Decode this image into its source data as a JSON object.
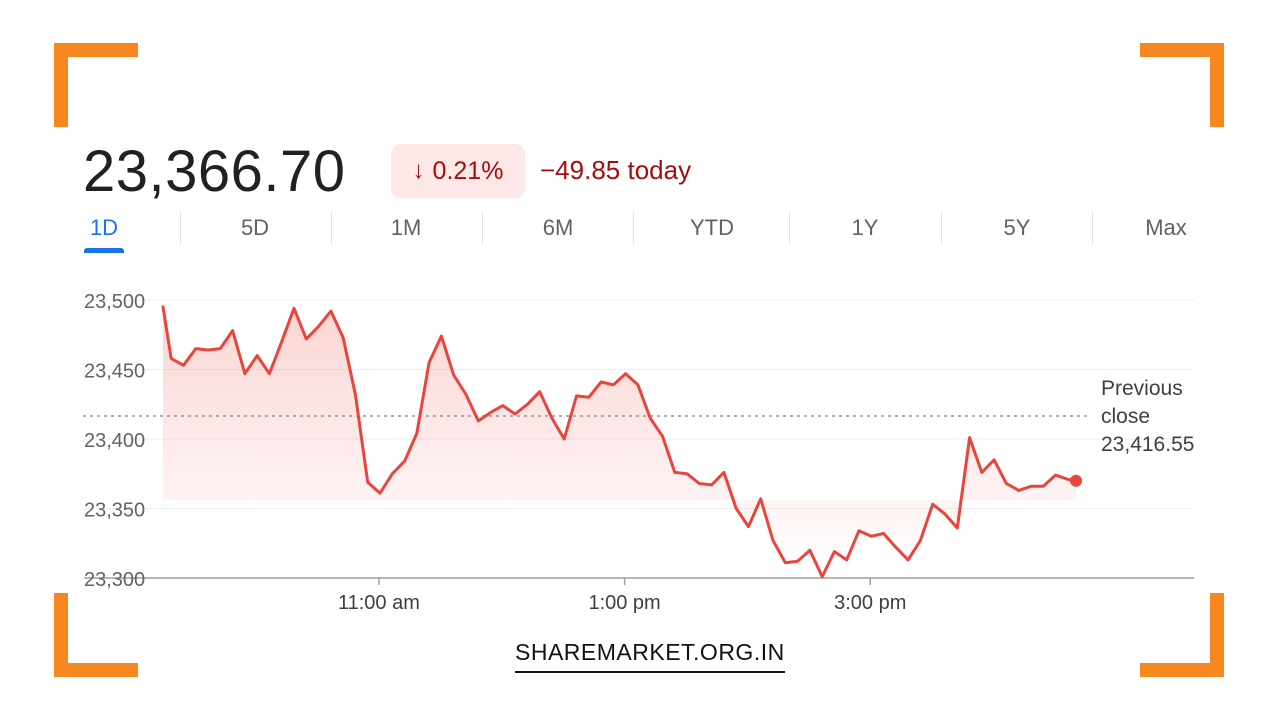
{
  "header": {
    "price": "23,366.70",
    "change_arrow": "↓",
    "change_percent": "0.21%",
    "change_abs": "−49.85 today"
  },
  "tabs": [
    {
      "label": "1D",
      "active": true
    },
    {
      "label": "5D"
    },
    {
      "label": "1M"
    },
    {
      "label": "6M"
    },
    {
      "label": "YTD"
    },
    {
      "label": "1Y"
    },
    {
      "label": "5Y"
    },
    {
      "label": "Max"
    }
  ],
  "colors": {
    "accent_corner": "#F7871F",
    "line": "#E8453C",
    "negative_text": "#A50E0E",
    "badge_bg": "#FCE8E6",
    "tab_active": "#1a73e8"
  },
  "chart_data": {
    "type": "line",
    "title": "",
    "xlabel": "",
    "ylabel": "",
    "ylim": [
      23300,
      23500
    ],
    "yticks": [
      "23,500",
      "23,450",
      "23,400",
      "23,350",
      "23,300"
    ],
    "ytick_values": [
      23500,
      23450,
      23400,
      23350,
      23300
    ],
    "xticks": [
      {
        "label": "11:00 am",
        "t": 660
      },
      {
        "label": "1:00 pm",
        "t": 780
      },
      {
        "label": "3:00 pm",
        "t": 900
      }
    ],
    "xlim": [
      555,
      1080
    ],
    "previous_close": {
      "value": 23416.55,
      "label_lines": [
        "Previous",
        "close",
        "23,416.55"
      ]
    },
    "series": [
      {
        "x": [
          555,
          559,
          565,
          571,
          577,
          583,
          589,
          595,
          601,
          607,
          613,
          619,
          625,
          631,
          637,
          643,
          649,
          655,
          661,
          667,
          673,
          679,
          685,
          691,
          697,
          703,
          709,
          715,
          721,
          727,
          733,
          739,
          745,
          751,
          757,
          763,
          769,
          775,
          781,
          787,
          793,
          799,
          805,
          811,
          817,
          823,
          829,
          835,
          841,
          847,
          853,
          859,
          865,
          871,
          877,
          883,
          889,
          895,
          901,
          907,
          913,
          919,
          925,
          931,
          937,
          943
        ],
        "y": [
          23495,
          23458,
          23453,
          23465,
          23464,
          23465,
          23478,
          23447,
          23460,
          23447,
          23470,
          23494,
          23472,
          23481,
          23492,
          23473,
          23432,
          23369,
          23361,
          23375,
          23384,
          23404,
          23455,
          23474,
          23446,
          23432,
          23413,
          23419,
          23424,
          23418,
          23425,
          23434,
          23415,
          23400,
          23431,
          23430,
          23441,
          23439,
          23447,
          23439,
          23415,
          23402,
          23376,
          23375,
          23368,
          23367,
          23376,
          23350,
          23337,
          23357,
          23327,
          23311,
          23312,
          23320,
          23301,
          23319,
          23313,
          23334,
          23330,
          23332,
          23322,
          23313,
          23327,
          23353,
          23346,
          23336
        ]
      }
    ],
    "extra_points": [
      {
        "x": 949,
        "y": 23401
      },
      {
        "x": 955,
        "y": 23376
      },
      {
        "x": 961,
        "y": 23385
      },
      {
        "x": 967,
        "y": 23368
      },
      {
        "x": 973,
        "y": 23363
      },
      {
        "x": 979,
        "y": 23366
      },
      {
        "x": 985,
        "y": 23366
      },
      {
        "x": 991,
        "y": 23374
      },
      {
        "x": 997,
        "y": 23371
      },
      {
        "x": 1001,
        "y": 23370
      }
    ]
  },
  "footer": {
    "brand": "SHAREMARKET.ORG.IN"
  }
}
